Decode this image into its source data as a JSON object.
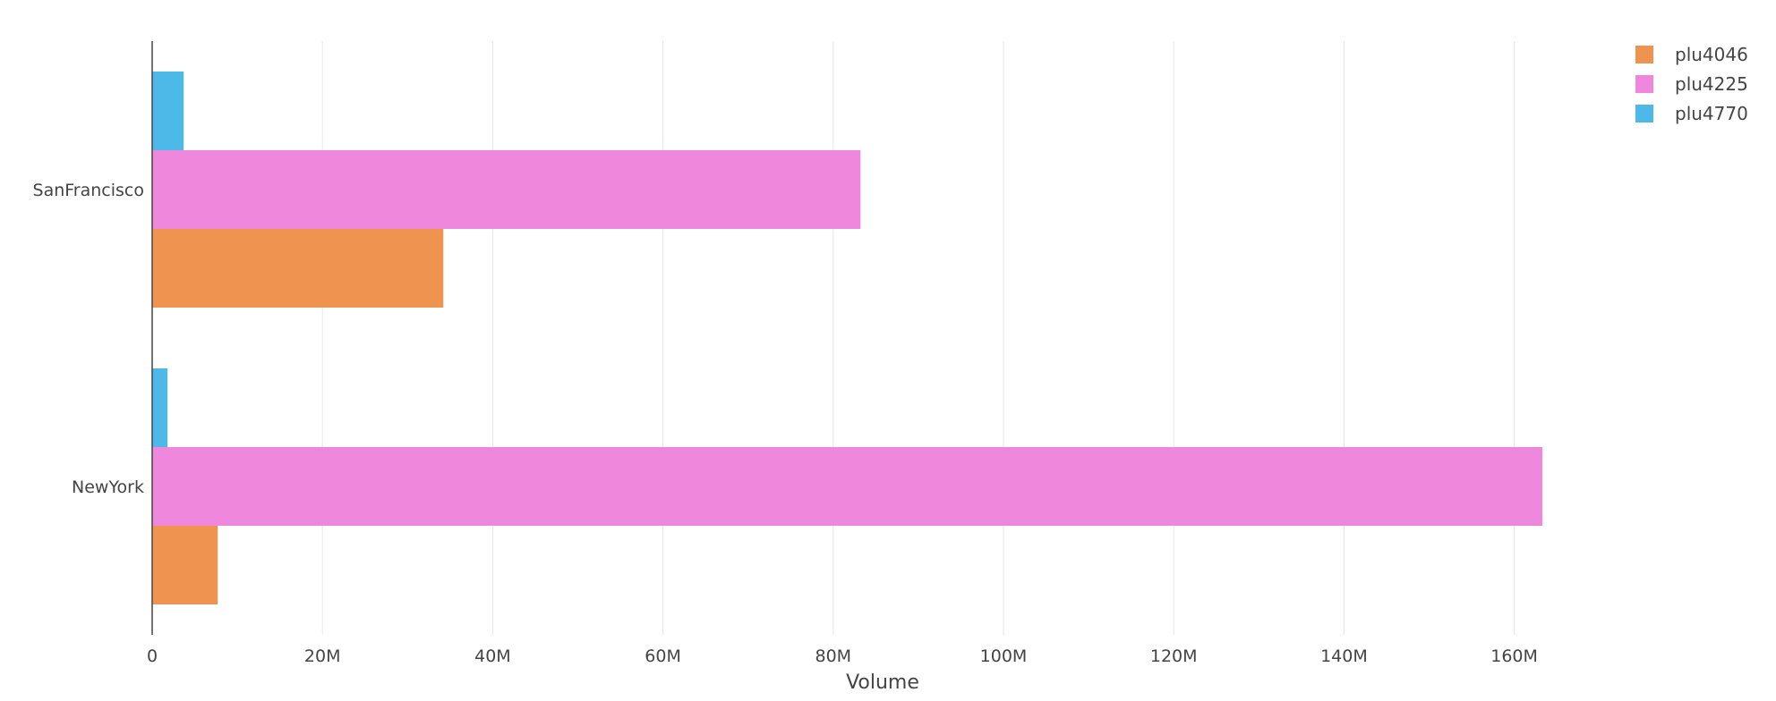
{
  "chart_data": {
    "type": "bar",
    "orientation": "horizontal",
    "title": "",
    "xlabel": "Volume",
    "ylabel": "",
    "categories": [
      "SanFrancisco",
      "NewYork"
    ],
    "series": [
      {
        "name": "plu4046",
        "color": "#ef9350",
        "values": [
          34200000,
          7700000
        ]
      },
      {
        "name": "plu4225",
        "color": "#ef88dd",
        "values": [
          83200000,
          163300000
        ]
      },
      {
        "name": "plu4770",
        "color": "#4cb9e8",
        "values": [
          3700000,
          1800000
        ]
      }
    ],
    "xlim": [
      0,
      175000000
    ],
    "x_ticks": [
      0,
      20000000,
      40000000,
      60000000,
      80000000,
      100000000,
      120000000,
      140000000,
      160000000
    ],
    "x_tick_labels": [
      "0",
      "20M",
      "40M",
      "60M",
      "80M",
      "100M",
      "120M",
      "140M",
      "160M"
    ],
    "grid": {
      "vertical": true,
      "horizontal": false,
      "color": "#e6e6e6"
    },
    "axis_line_color": "#444444",
    "legend": {
      "position": "top-right"
    }
  }
}
